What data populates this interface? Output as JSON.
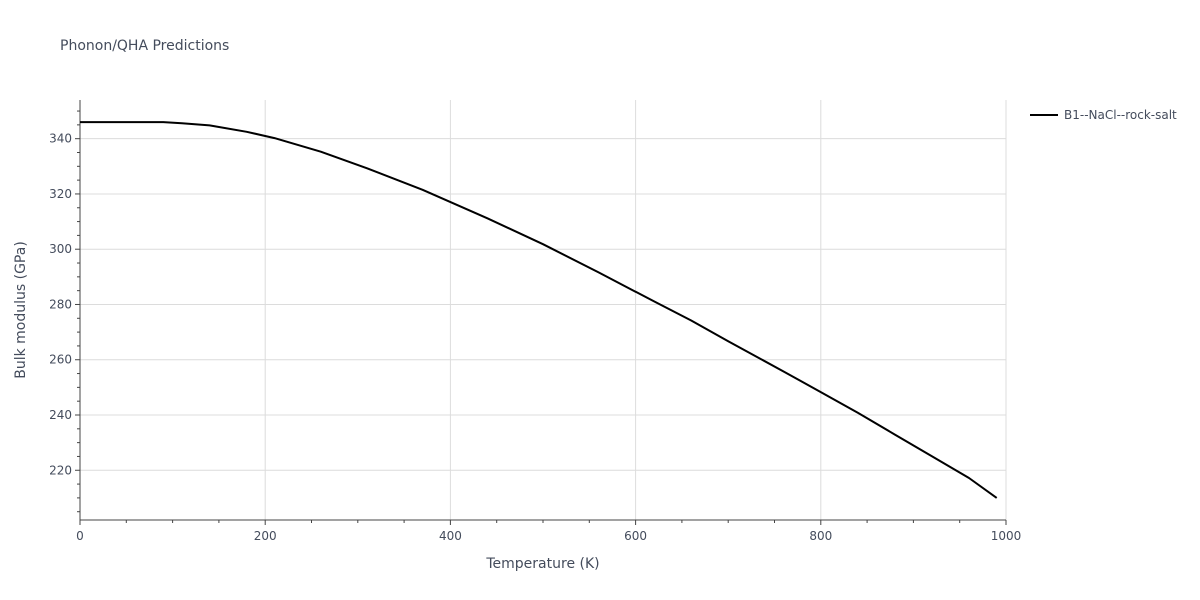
{
  "chart_data": {
    "type": "line",
    "title": "Phonon/QHA Predictions",
    "xlabel": "Temperature (K)",
    "ylabel": "Bulk modulus (GPa)",
    "xlim": [
      0,
      1000
    ],
    "ylim": [
      202,
      354
    ],
    "x_ticks": [
      0,
      200,
      400,
      600,
      800,
      1000
    ],
    "y_ticks": [
      220,
      240,
      260,
      280,
      300,
      320,
      340
    ],
    "x_tick_labels": [
      "0",
      "200",
      "400",
      "600",
      "800",
      "1000"
    ],
    "y_tick_labels": [
      "220",
      "240",
      "260",
      "280",
      "300",
      "320",
      "340"
    ],
    "grid": true,
    "legend_position": "top-right",
    "line_color": "#000000",
    "series": [
      {
        "name": "B1--NaCl--rock-salt",
        "x": [
          0,
          40,
          90,
          110,
          140,
          180,
          210,
          260,
          310,
          370,
          440,
          500,
          560,
          620,
          660,
          700,
          760,
          800,
          840,
          880,
          920,
          960,
          990
        ],
        "y": [
          346,
          346,
          346,
          345.6,
          344.8,
          342.5,
          340.2,
          335.3,
          329.3,
          321.5,
          311.2,
          301.8,
          291.6,
          281.1,
          274.2,
          266.7,
          255.7,
          248.3,
          240.8,
          232.9,
          225.1,
          217.2,
          210
        ]
      }
    ]
  }
}
